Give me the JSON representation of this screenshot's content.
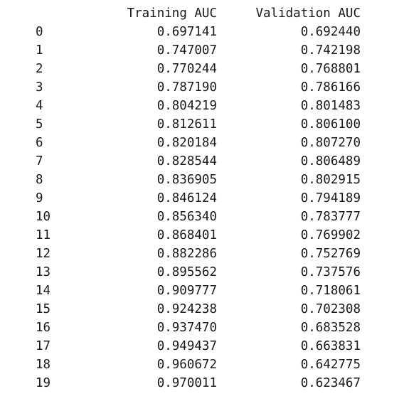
{
  "table": {
    "columns": [
      "Training AUC",
      "Validation AUC"
    ],
    "rows": [
      {
        "index": "0",
        "training_auc": "0.697141",
        "validation_auc": "0.692440"
      },
      {
        "index": "1",
        "training_auc": "0.747007",
        "validation_auc": "0.742198"
      },
      {
        "index": "2",
        "training_auc": "0.770244",
        "validation_auc": "0.768801"
      },
      {
        "index": "3",
        "training_auc": "0.787190",
        "validation_auc": "0.786166"
      },
      {
        "index": "4",
        "training_auc": "0.804219",
        "validation_auc": "0.801483"
      },
      {
        "index": "5",
        "training_auc": "0.812611",
        "validation_auc": "0.806100"
      },
      {
        "index": "6",
        "training_auc": "0.820184",
        "validation_auc": "0.807270"
      },
      {
        "index": "7",
        "training_auc": "0.828544",
        "validation_auc": "0.806489"
      },
      {
        "index": "8",
        "training_auc": "0.836905",
        "validation_auc": "0.802915"
      },
      {
        "index": "9",
        "training_auc": "0.846124",
        "validation_auc": "0.794189"
      },
      {
        "index": "10",
        "training_auc": "0.856340",
        "validation_auc": "0.783777"
      },
      {
        "index": "11",
        "training_auc": "0.868401",
        "validation_auc": "0.769902"
      },
      {
        "index": "12",
        "training_auc": "0.882286",
        "validation_auc": "0.752769"
      },
      {
        "index": "13",
        "training_auc": "0.895562",
        "validation_auc": "0.737576"
      },
      {
        "index": "14",
        "training_auc": "0.909777",
        "validation_auc": "0.718061"
      },
      {
        "index": "15",
        "training_auc": "0.924238",
        "validation_auc": "0.702308"
      },
      {
        "index": "16",
        "training_auc": "0.937470",
        "validation_auc": "0.683528"
      },
      {
        "index": "17",
        "training_auc": "0.949437",
        "validation_auc": "0.663831"
      },
      {
        "index": "18",
        "training_auc": "0.960672",
        "validation_auc": "0.642775"
      },
      {
        "index": "19",
        "training_auc": "0.970011",
        "validation_auc": "0.623467"
      }
    ]
  }
}
